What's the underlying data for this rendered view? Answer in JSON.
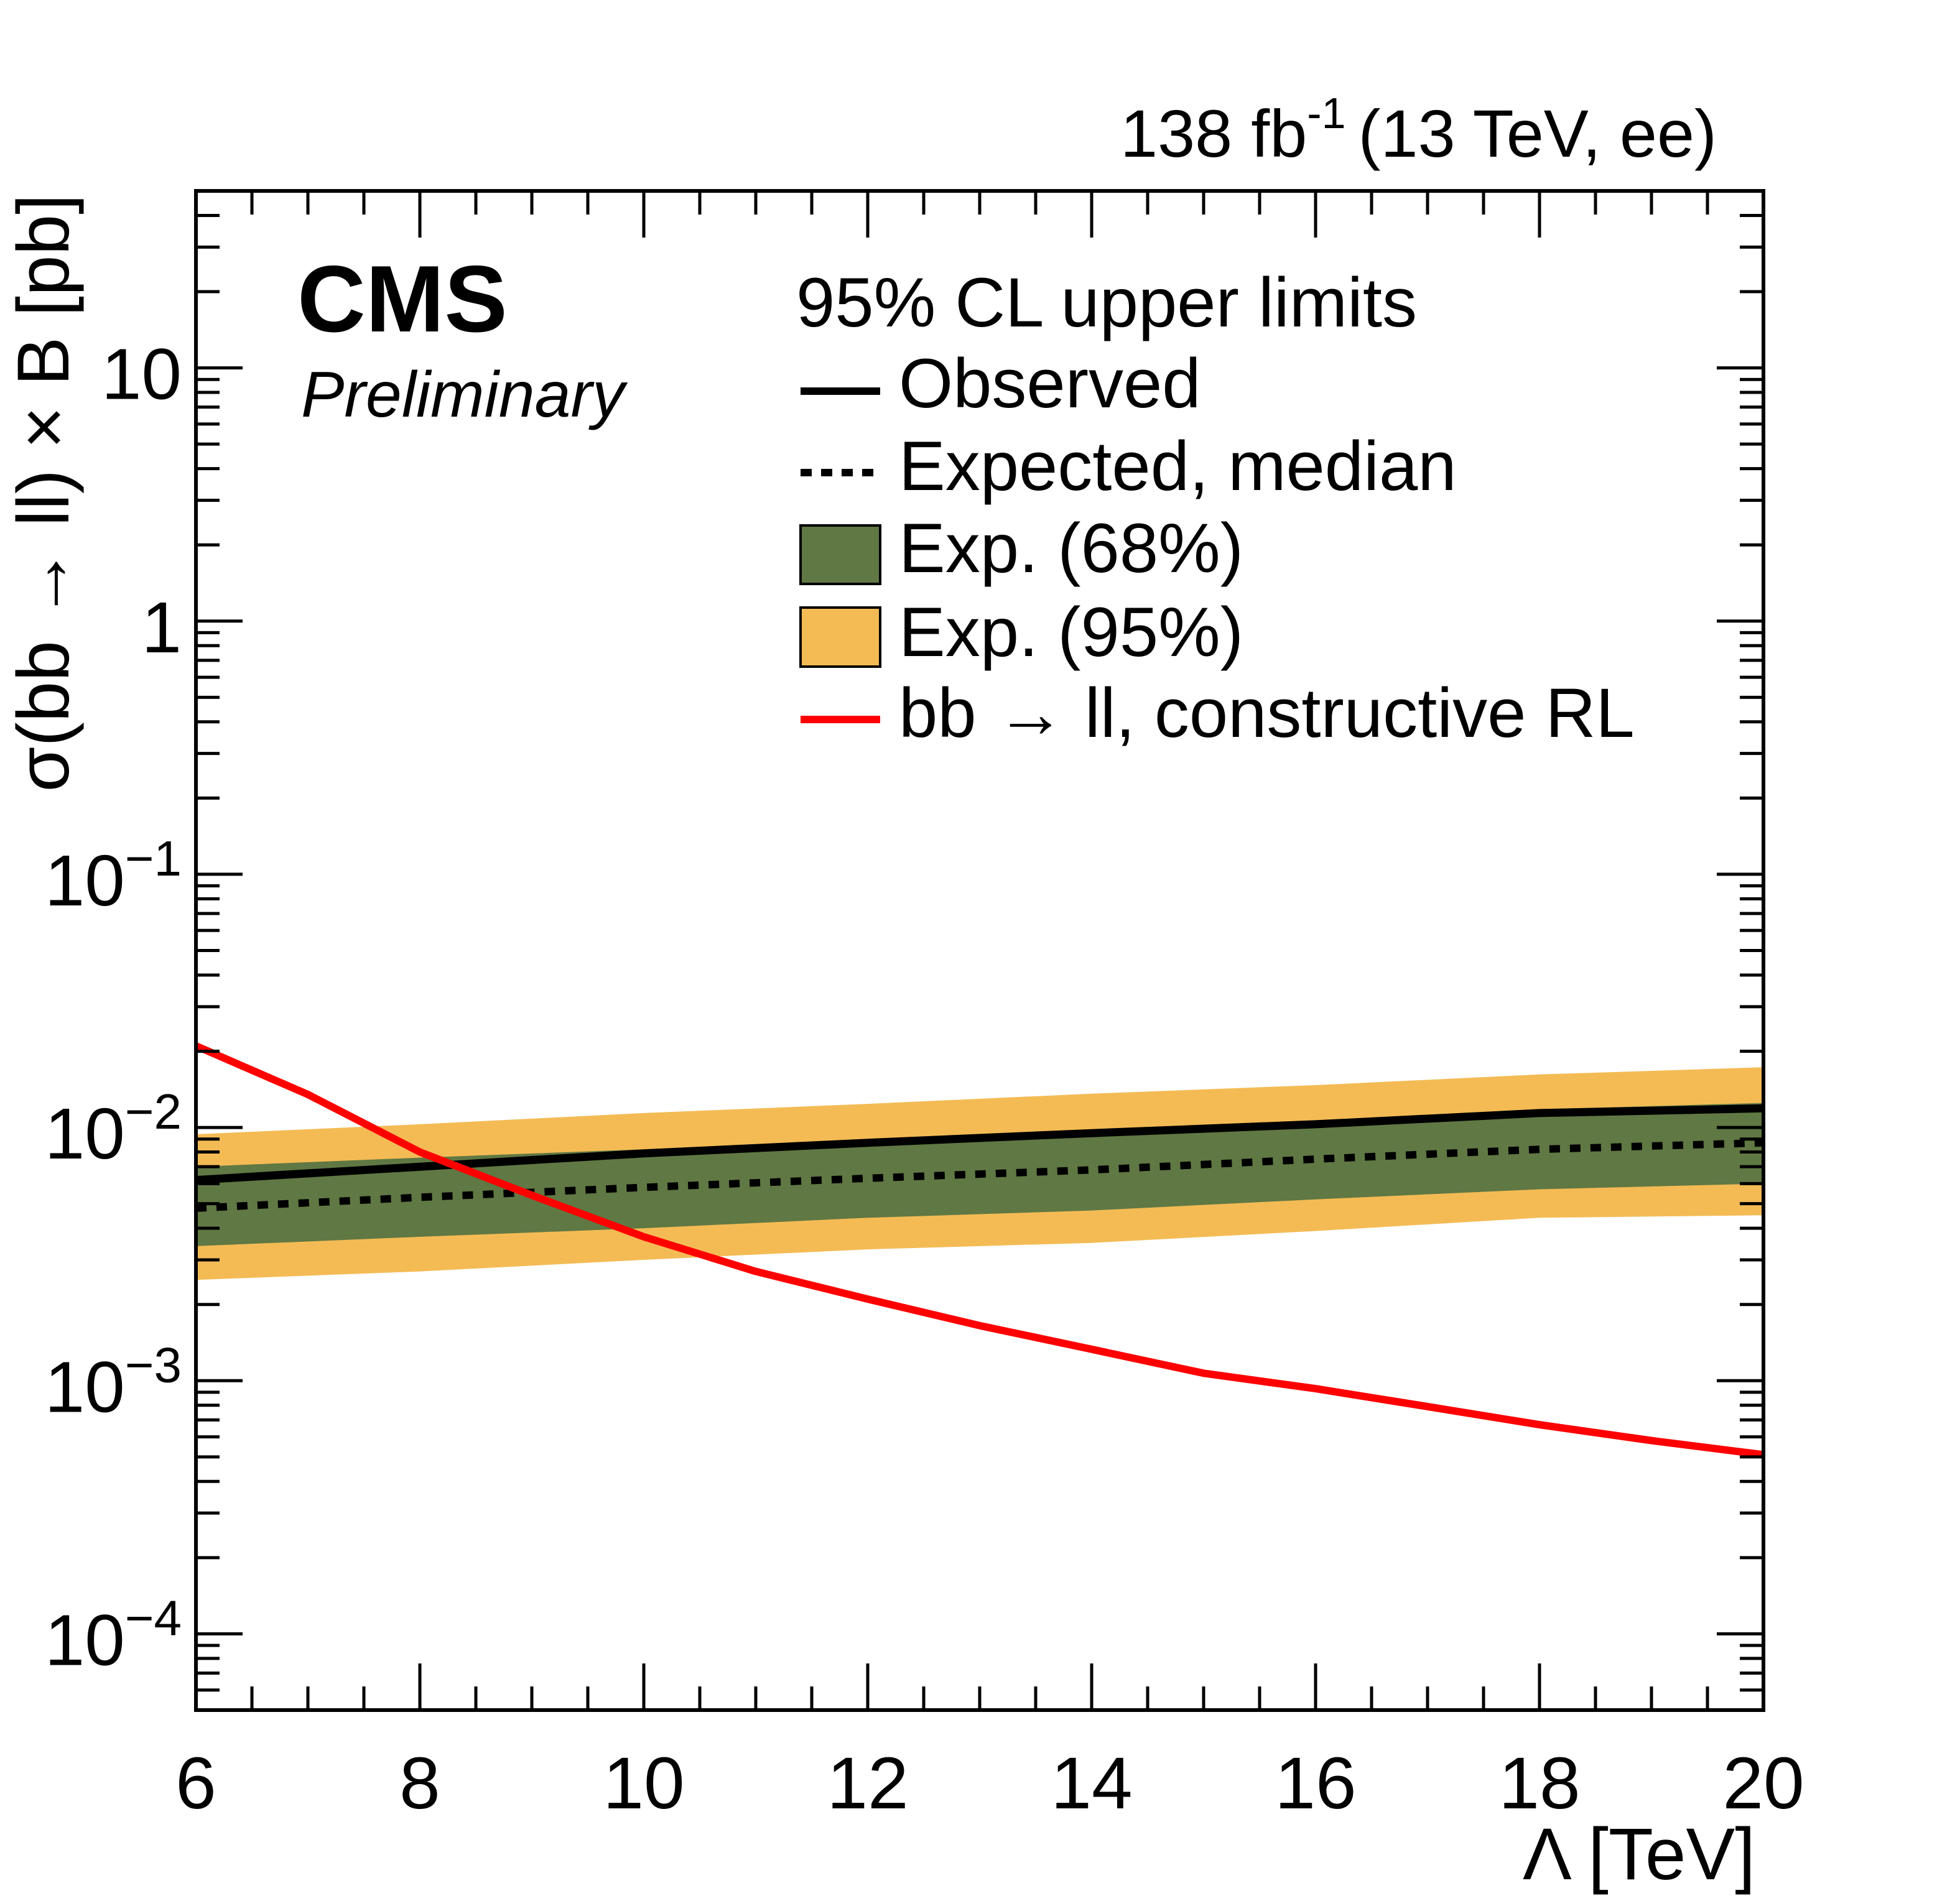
{
  "header": {
    "lumi_label": "138 fb",
    "lumi_exponent": "-1",
    "energy_label": "(13 TeV, ee)"
  },
  "experiment": {
    "name": "CMS",
    "status": "Preliminary"
  },
  "colors": {
    "observed": "#000000",
    "expected": "#000000",
    "band68": "#607843",
    "band95": "#f4bb55",
    "theory": "#ff0000"
  },
  "legend": {
    "title": "95% CL upper limits",
    "entries": [
      {
        "key": "observed",
        "label": "Observed",
        "style": "solid-line"
      },
      {
        "key": "expected",
        "label": "Expected, median",
        "style": "dashed-line"
      },
      {
        "key": "band68",
        "label": "Exp. (68%)",
        "style": "box"
      },
      {
        "key": "band95",
        "label": "Exp. (95%)",
        "style": "box"
      },
      {
        "key": "theory",
        "label": "bb → ll, constructive RL",
        "style": "solid-line"
      }
    ]
  },
  "chart_data": {
    "type": "line",
    "title": "",
    "xlabel": "Λ [TeV]",
    "ylabel": "σ(bb → ll) × B [pb]",
    "xlim": [
      6,
      20
    ],
    "ylim": [
      5e-05,
      50
    ],
    "yscale": "log",
    "grid": false,
    "legend_position": "top-right",
    "x_ticks": [
      6,
      8,
      10,
      12,
      14,
      16,
      18,
      20
    ],
    "x_tick_labels": [
      "6",
      "8",
      "10",
      "12",
      "14",
      "16",
      "18",
      "20"
    ],
    "y_ticks": [
      {
        "value": 10,
        "base": "10",
        "exp": ""
      },
      {
        "value": 1,
        "base": "1",
        "exp": ""
      },
      {
        "value": 0.1,
        "base": "10",
        "exp": "−1"
      },
      {
        "value": 0.01,
        "base": "10",
        "exp": "−2"
      },
      {
        "value": 0.001,
        "base": "10",
        "exp": "−3"
      },
      {
        "value": 0.0001,
        "base": "10",
        "exp": "−4"
      }
    ],
    "x": [
      6,
      8,
      10,
      12,
      14,
      16,
      18,
      20
    ],
    "series": [
      {
        "name": "Observed",
        "values": [
          0.0062,
          0.007,
          0.0079,
          0.0087,
          0.0095,
          0.0103,
          0.0114,
          0.0119
        ]
      },
      {
        "name": "Expected, median",
        "values": [
          0.0048,
          0.0053,
          0.0058,
          0.0063,
          0.0068,
          0.0075,
          0.0082,
          0.0087
        ]
      },
      {
        "name": "Exp. (68%)",
        "low": [
          0.0034,
          0.0037,
          0.004,
          0.0044,
          0.0047,
          0.0052,
          0.0057,
          0.006
        ],
        "high": [
          0.007,
          0.0076,
          0.0082,
          0.009,
          0.0098,
          0.0106,
          0.0118,
          0.0125
        ]
      },
      {
        "name": "Exp. (95%)",
        "low": [
          0.0025,
          0.0027,
          0.003,
          0.0033,
          0.0035,
          0.0039,
          0.0044,
          0.0045
        ],
        "high": [
          0.0094,
          0.0103,
          0.0114,
          0.0124,
          0.0136,
          0.0147,
          0.0162,
          0.0173
        ]
      }
    ],
    "theory": {
      "name": "bb → ll, constructive RL",
      "x": [
        6,
        7,
        8,
        9,
        10,
        11,
        12,
        13,
        14,
        15,
        16,
        17,
        18,
        19,
        20
      ],
      "values": [
        0.021,
        0.0135,
        0.008,
        0.0054,
        0.0037,
        0.0027,
        0.0021,
        0.00165,
        0.00133,
        0.00107,
        0.00093,
        0.00079,
        0.00067,
        0.00058,
        0.00051
      ]
    }
  }
}
